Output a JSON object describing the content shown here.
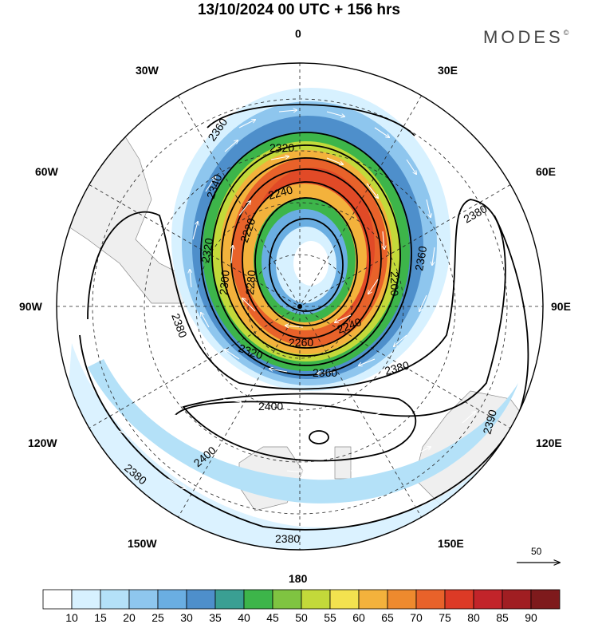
{
  "title": "13/10/2024  00 UTC  + 156 hrs",
  "brand": {
    "name": "MODES",
    "mark": "©"
  },
  "longitude_labels": {
    "top": "0",
    "bottom": "180",
    "left": "90W",
    "right": "90E",
    "nw1": "30W",
    "nw2": "60W",
    "ne1": "30E",
    "ne2": "60E",
    "sw1": "120W",
    "sw2": "150W",
    "se1": "120E",
    "se2": "150E"
  },
  "contour_labels": [
    "2360",
    "2320",
    "2340",
    "2240",
    "2220",
    "2320",
    "2300",
    "2280",
    "2200",
    "2380",
    "2240",
    "2260",
    "2320",
    "2360",
    "2380",
    "2400",
    "2400",
    "2380",
    "2380",
    "2360",
    "2380",
    "2390"
  ],
  "legend": {
    "values": [
      "10",
      "15",
      "20",
      "25",
      "30",
      "35",
      "40",
      "45",
      "50",
      "55",
      "60",
      "65",
      "70",
      "75",
      "80",
      "85",
      "90"
    ],
    "colors": [
      "#ffffff",
      "#d7f1ff",
      "#b4e1f8",
      "#8ec6ee",
      "#6aaee2",
      "#4e8fcb",
      "#3a9f93",
      "#3db54a",
      "#7fc441",
      "#c3d93a",
      "#f3e24f",
      "#f3b23c",
      "#ee8a2e",
      "#e8622a",
      "#dc3a26",
      "#c2242a",
      "#a01e22",
      "#7e1a1c"
    ]
  },
  "reference_arrow": {
    "value": "50"
  }
}
